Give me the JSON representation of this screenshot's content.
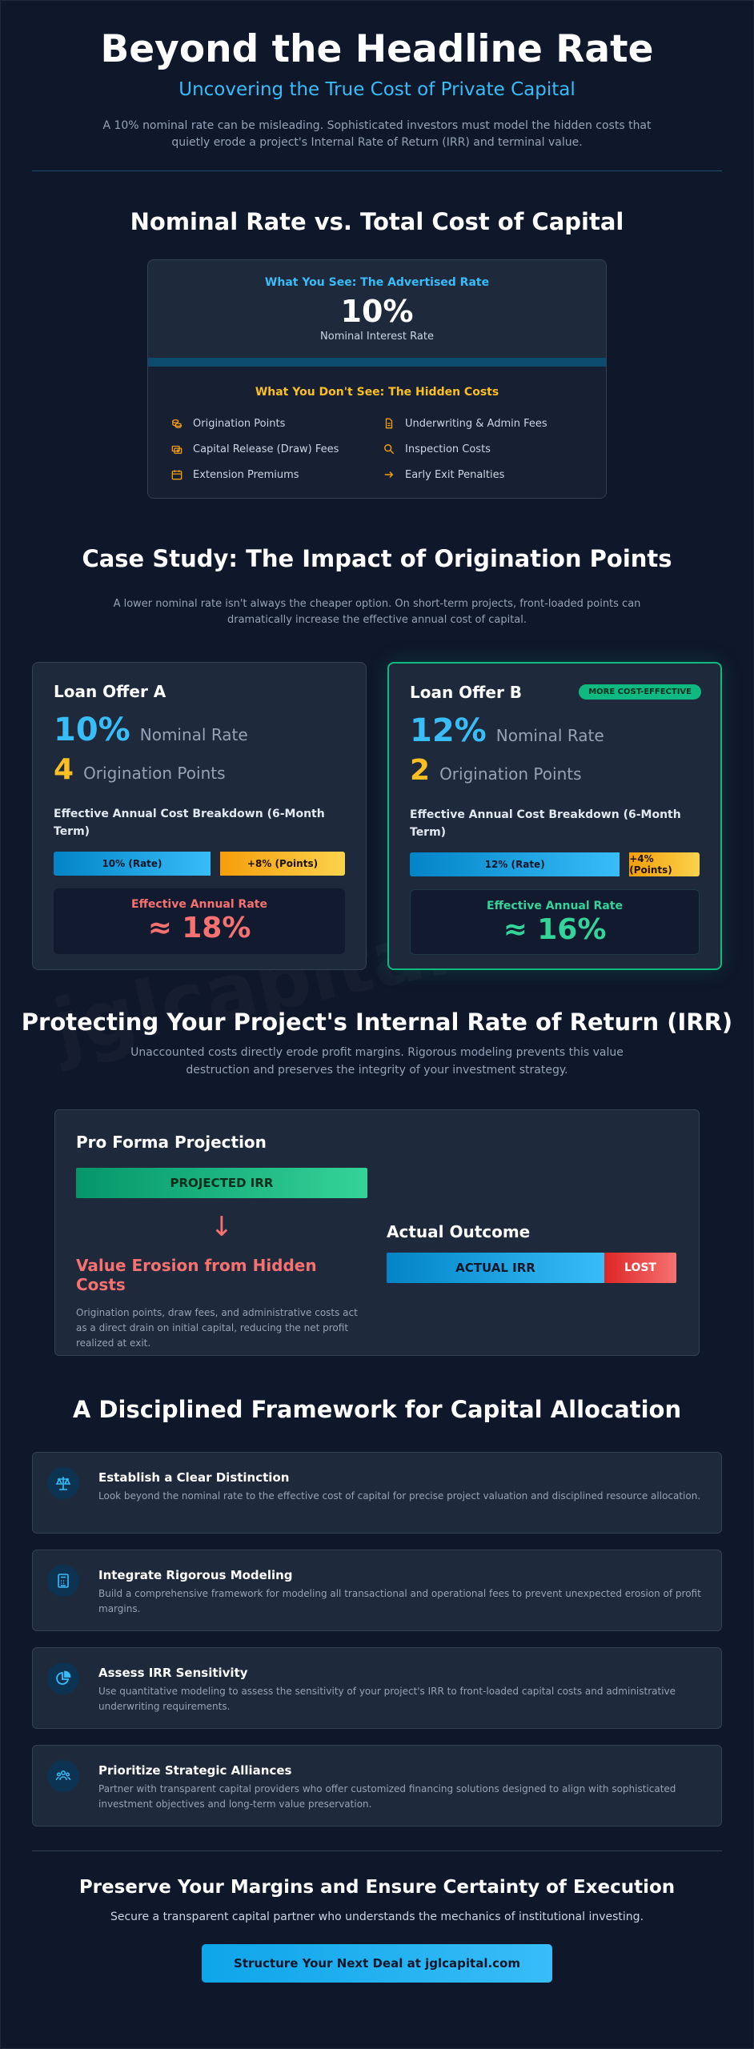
{
  "watermark": "jglcapital.com",
  "hero": {
    "title": "Beyond the Headline Rate",
    "subtitle": "Uncovering the True Cost of Private Capital",
    "intro": "A 10% nominal rate can be misleading. Sophisticated investors must model the hidden costs that quietly erode a project's Internal Rate of Return (IRR) and terminal value."
  },
  "nominal": {
    "title": "Nominal Rate vs. Total Cost of Capital",
    "see_label": "What You See: The Advertised Rate",
    "rate": "10%",
    "rate_caption": "Nominal Interest Rate",
    "hidden_label": "What You Don't See: The Hidden Costs",
    "hidden_items": [
      {
        "label": "Origination Points",
        "icon": "coins-icon"
      },
      {
        "label": "Underwriting & Admin Fees",
        "icon": "document-icon"
      },
      {
        "label": "Capital Release (Draw) Fees",
        "icon": "money-stack-icon"
      },
      {
        "label": "Inspection Costs",
        "icon": "magnifier-icon"
      },
      {
        "label": "Extension Premiums",
        "icon": "calendar-icon"
      },
      {
        "label": "Early Exit Penalties",
        "icon": "arrow-right-icon"
      }
    ]
  },
  "case_study": {
    "title": "Case Study: The Impact of Origination Points",
    "lead": "A lower nominal rate isn't always the cheaper option. On short-term projects, front-loaded points can dramatically increase the effective annual cost of capital.",
    "offers": [
      {
        "name": "Loan Offer A",
        "badge": "",
        "rate": "10%",
        "rate_label": "Nominal Rate",
        "points": "4",
        "points_label": "Origination Points",
        "breakdown_label": "Effective Annual Cost Breakdown (6-Month Term)",
        "rate_bar_label": "10% (Rate)",
        "rate_bar_share": 0.5556,
        "points_bar_label": "+8% (Points)",
        "points_bar_share": 0.4444,
        "effective_label": "Effective Annual Rate",
        "effective_value": "≈ 18%",
        "color": "#f87171"
      },
      {
        "name": "Loan Offer B",
        "badge": "MORE COST-EFFECTIVE",
        "rate": "12%",
        "rate_label": "Nominal Rate",
        "points": "2",
        "points_label": "Origination Points",
        "breakdown_label": "Effective Annual Cost Breakdown (6-Month Term)",
        "rate_bar_label": "12% (Rate)",
        "rate_bar_share": 0.75,
        "points_bar_label": "+4% (Points)",
        "points_bar_share": 0.25,
        "effective_label": "Effective Annual Rate",
        "effective_value": "≈ 16%",
        "color": "#34d399"
      }
    ]
  },
  "irr": {
    "title": "Protecting Your Project's Internal Rate of Return (IRR)",
    "lead": "Unaccounted costs directly erode profit margins. Rigorous modeling prevents this value destruction and preserves the integrity of your investment strategy.",
    "proforma_title": "Pro Forma Projection",
    "projected_label": "PROJECTED IRR",
    "erosion_title": "Value Erosion from Hidden Costs",
    "erosion_text": "Origination points, draw fees, and administrative costs act as a direct drain on initial capital, reducing the net profit realized at exit.",
    "actual_title": "Actual Outcome",
    "actual_label": "ACTUAL IRR",
    "lost_label": "LOST"
  },
  "framework": {
    "title": "A Disciplined Framework for Capital Allocation",
    "items": [
      {
        "title": "Establish a Clear Distinction",
        "text": "Look beyond the nominal rate to the effective cost of capital for precise project valuation and disciplined resource allocation.",
        "icon": "scales-icon"
      },
      {
        "title": "Integrate Rigorous Modeling",
        "text": "Build a comprehensive framework for modeling all transactional and operational fees to prevent unexpected erosion of profit margins.",
        "icon": "calculator-icon"
      },
      {
        "title": "Assess IRR Sensitivity",
        "text": "Use quantitative modeling to assess the sensitivity of your project's IRR to front-loaded capital costs and administrative underwriting requirements.",
        "icon": "pie-chart-icon"
      },
      {
        "title": "Prioritize Strategic Alliances",
        "text": "Partner with transparent capital providers who offer customized financing solutions designed to align with sophisticated investment objectives and long-term value preservation.",
        "icon": "people-icon"
      }
    ]
  },
  "cta": {
    "title": "Preserve Your Margins and Ensure Certainty of Execution",
    "subtitle": "Secure a transparent capital partner who understands the mechanics of institutional investing.",
    "button": "Structure Your Next Deal at jglcapital.com"
  }
}
